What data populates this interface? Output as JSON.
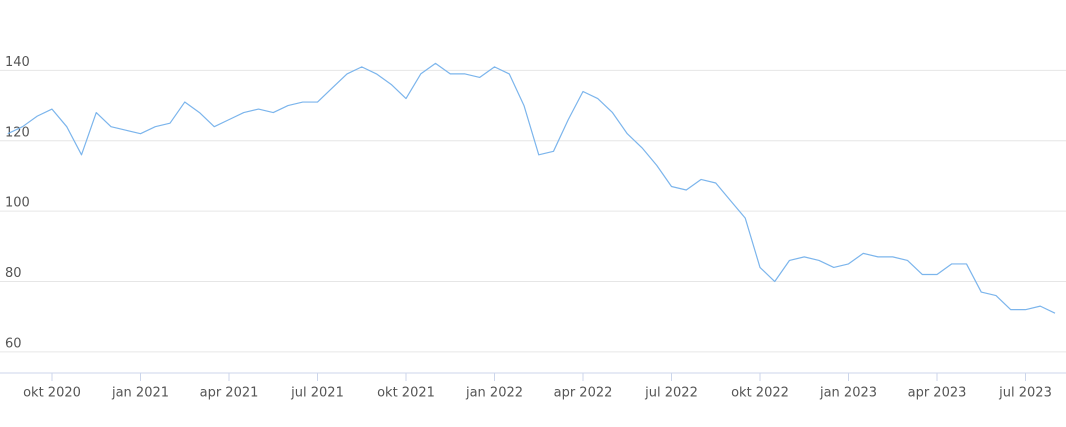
{
  "chart_data": {
    "type": "line",
    "categories": [
      "",
      "",
      "",
      "okt 2020",
      "",
      "",
      "",
      "",
      "",
      "jan 2021",
      "",
      "",
      "",
      "",
      "",
      "apr 2021",
      "",
      "",
      "",
      "",
      "",
      "jul 2021",
      "",
      "",
      "",
      "",
      "",
      "okt 2021",
      "",
      "",
      "",
      "",
      "",
      "jan 2022",
      "",
      "",
      "",
      "",
      "",
      "apr 2022",
      "",
      "",
      "",
      "",
      "",
      "jul 2022",
      "",
      "",
      "",
      "",
      "",
      "okt 2022",
      "",
      "",
      "",
      "",
      "",
      "jan 2023",
      "",
      "",
      "",
      "",
      "",
      "apr 2023",
      "",
      "",
      "",
      "",
      "",
      "jul 2023",
      "",
      ""
    ],
    "series": [
      {
        "color": "#7cb5ec",
        "values": [
          122,
          124,
          127,
          129,
          124,
          116,
          128,
          124,
          123,
          122,
          124,
          125,
          131,
          128,
          124,
          126,
          128,
          129,
          128,
          130,
          131,
          131,
          135,
          139,
          141,
          139,
          136,
          132,
          139,
          142,
          139,
          139,
          138,
          141,
          139,
          130,
          116,
          117,
          126,
          134,
          132,
          128,
          122,
          118,
          113,
          107,
          106,
          109,
          108,
          103,
          98,
          84,
          80,
          86,
          87,
          86,
          84,
          85,
          88,
          87,
          87,
          86,
          82,
          82,
          85,
          85,
          77,
          76,
          72,
          72,
          73,
          71
        ]
      }
    ],
    "ylim": [
      54,
      160
    ],
    "yticks": [
      60,
      80,
      100,
      120,
      140
    ],
    "grid": true
  }
}
